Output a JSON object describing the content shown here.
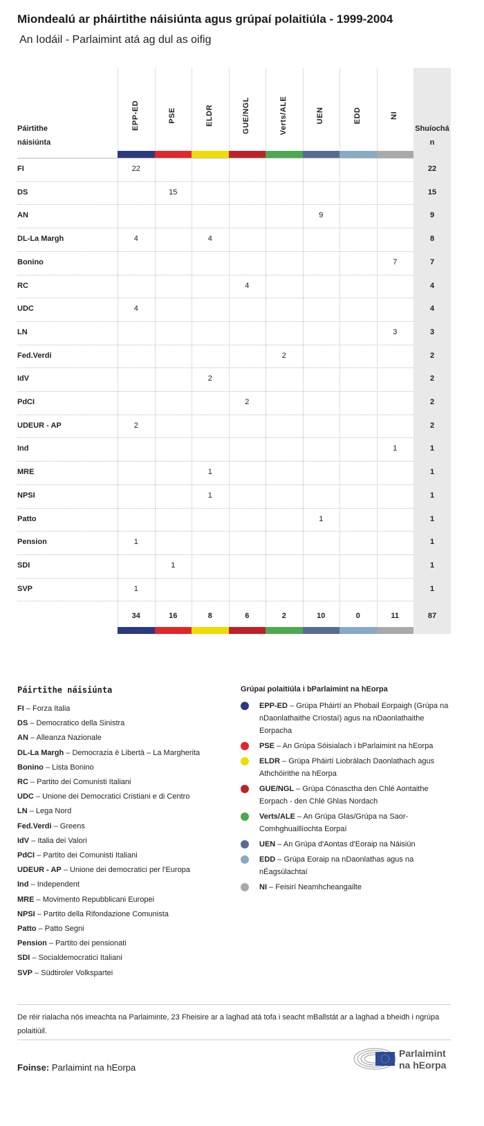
{
  "header": {
    "title": "Miondealú ar pháirtithe náisiúnta agus grúpaí polaitiúla - 1999-2004",
    "subtitle": "An Iodáil - Parlaimint atá ag dul as oifig"
  },
  "chart_data": {
    "type": "table",
    "row_header": "Páirtithe náisiúnta",
    "total_header": "Shuíochán",
    "groups": [
      {
        "name": "EPP-ED",
        "color": "#2b3a7e"
      },
      {
        "name": "PSE",
        "color": "#e2262a"
      },
      {
        "name": "ELDR",
        "color": "#f0dc00"
      },
      {
        "name": "GUE/NGL",
        "color": "#c02027"
      },
      {
        "name": "Verts/ALE",
        "color": "#4ca950"
      },
      {
        "name": "UEN",
        "color": "#586a92"
      },
      {
        "name": "EDD",
        "color": "#86aac3"
      },
      {
        "name": "NI",
        "color": "#a9a9a9"
      }
    ],
    "rows": [
      {
        "party": "FI",
        "values": [
          22,
          null,
          null,
          null,
          null,
          null,
          null,
          null
        ],
        "total": 22
      },
      {
        "party": "DS",
        "values": [
          null,
          15,
          null,
          null,
          null,
          null,
          null,
          null
        ],
        "total": 15
      },
      {
        "party": "AN",
        "values": [
          null,
          null,
          null,
          null,
          null,
          9,
          null,
          null
        ],
        "total": 9
      },
      {
        "party": "DL-La Margh",
        "values": [
          4,
          null,
          4,
          null,
          null,
          null,
          null,
          null
        ],
        "total": 8
      },
      {
        "party": "Bonino",
        "values": [
          null,
          null,
          null,
          null,
          null,
          null,
          null,
          7
        ],
        "total": 7
      },
      {
        "party": "RC",
        "values": [
          null,
          null,
          null,
          4,
          null,
          null,
          null,
          null
        ],
        "total": 4
      },
      {
        "party": "UDC",
        "values": [
          4,
          null,
          null,
          null,
          null,
          null,
          null,
          null
        ],
        "total": 4
      },
      {
        "party": "LN",
        "values": [
          null,
          null,
          null,
          null,
          null,
          null,
          null,
          3
        ],
        "total": 3
      },
      {
        "party": "Fed.Verdi",
        "values": [
          null,
          null,
          null,
          null,
          2,
          null,
          null,
          null
        ],
        "total": 2
      },
      {
        "party": "IdV",
        "values": [
          null,
          null,
          2,
          null,
          null,
          null,
          null,
          null
        ],
        "total": 2
      },
      {
        "party": "PdCI",
        "values": [
          null,
          null,
          null,
          2,
          null,
          null,
          null,
          null
        ],
        "total": 2
      },
      {
        "party": "UDEUR - AP",
        "values": [
          2,
          null,
          null,
          null,
          null,
          null,
          null,
          null
        ],
        "total": 2
      },
      {
        "party": "Ind",
        "values": [
          null,
          null,
          null,
          null,
          null,
          null,
          null,
          1
        ],
        "total": 1
      },
      {
        "party": "MRE",
        "values": [
          null,
          null,
          1,
          null,
          null,
          null,
          null,
          null
        ],
        "total": 1
      },
      {
        "party": "NPSI",
        "values": [
          null,
          null,
          1,
          null,
          null,
          null,
          null,
          null
        ],
        "total": 1
      },
      {
        "party": "Patto",
        "values": [
          null,
          null,
          null,
          null,
          null,
          1,
          null,
          null
        ],
        "total": 1
      },
      {
        "party": "Pension",
        "values": [
          1,
          null,
          null,
          null,
          null,
          null,
          null,
          null
        ],
        "total": 1
      },
      {
        "party": "SDI",
        "values": [
          null,
          1,
          null,
          null,
          null,
          null,
          null,
          null
        ],
        "total": 1
      },
      {
        "party": "SVP",
        "values": [
          1,
          null,
          null,
          null,
          null,
          null,
          null,
          null
        ],
        "total": 1
      }
    ],
    "group_totals": [
      34,
      16,
      8,
      6,
      2,
      10,
      0,
      11
    ],
    "grand_total": 87
  },
  "legend_parties": {
    "title": "Páirtithe náisiúnta",
    "items": [
      {
        "abbr": "FI",
        "name": "Forza Italia"
      },
      {
        "abbr": "DS",
        "name": "Democratico della Sinistra"
      },
      {
        "abbr": "AN",
        "name": "Alleanza Nazionale"
      },
      {
        "abbr": "DL-La Margh",
        "name": "Democrazia è Libertà – La Margherita"
      },
      {
        "abbr": "Bonino",
        "name": "Lista Bonino"
      },
      {
        "abbr": "RC",
        "name": "Partito dei Comunisti Italiani"
      },
      {
        "abbr": "UDC",
        "name": "Unione dei Democratici Cristiani e di Centro"
      },
      {
        "abbr": "LN",
        "name": "Lega Nord"
      },
      {
        "abbr": "Fed.Verdi",
        "name": "Greens"
      },
      {
        "abbr": "IdV",
        "name": "Italia dei Valori"
      },
      {
        "abbr": "PdCI",
        "name": "Partito dei Comunisti Italiani"
      },
      {
        "abbr": "UDEUR - AP",
        "name": "Unione dei democratici per l'Europa"
      },
      {
        "abbr": "Ind",
        "name": "Independent"
      },
      {
        "abbr": "MRE",
        "name": "Movimento Repubblicani Europei"
      },
      {
        "abbr": "NPSI",
        "name": "Partito della Rifondazione Comunista"
      },
      {
        "abbr": "Patto",
        "name": "Patto Segni"
      },
      {
        "abbr": "Pension",
        "name": "Partito dei pensionati"
      },
      {
        "abbr": "SDI",
        "name": "Socialdemocratici Italiani"
      },
      {
        "abbr": "SVP",
        "name": "Südtiroler Volkspartei"
      }
    ]
  },
  "legend_groups": {
    "title": "Grúpaí polaitiúla i bParlaimint na hEorpa",
    "items": [
      {
        "abbr": "EPP-ED",
        "name": "Grúpa Pháirtí an Phobail Eorpaigh (Grúpa na nDaonlathaithe Críostaí) agus na nDaonlathaithe Eorpacha"
      },
      {
        "abbr": "PSE",
        "name": "An Grúpa Sóisialach i bParlaimint na hEorpa"
      },
      {
        "abbr": "ELDR",
        "name": "Grúpa Pháirtí Liobrálach Daonlathach agus Athchóirithe na hEorpa"
      },
      {
        "abbr": "GUE/NGL",
        "name": "Grúpa Cónasctha den Chlé Aontaithe Eorpach - den Chlé Ghlas Nordach"
      },
      {
        "abbr": "Verts/ALE",
        "name": "An Grúpa Glas/Grúpa na Saor-Comhghuaillíochta Eorpaí"
      },
      {
        "abbr": "UEN",
        "name": "An Grúpa d'Aontas d'Eoraip na Náisiún"
      },
      {
        "abbr": "EDD",
        "name": "Grúpa Eoraip na nDaonlathas agus na nÉagsúlachtaí"
      },
      {
        "abbr": "NI",
        "name": "Feisirí Neamhcheangailte"
      }
    ]
  },
  "footer": {
    "note": "De réir rialacha nós imeachta na Parlaiminte, 23 Fheisire ar a laghad atá tofa i seacht mBallstát ar a laghad a bheidh i ngrúpa polaitiúil.",
    "source_label": "Foinse:",
    "source": "Parlaimint na hEorpa",
    "logo_text": [
      "Parlaimint",
      "na hEorpa"
    ]
  }
}
